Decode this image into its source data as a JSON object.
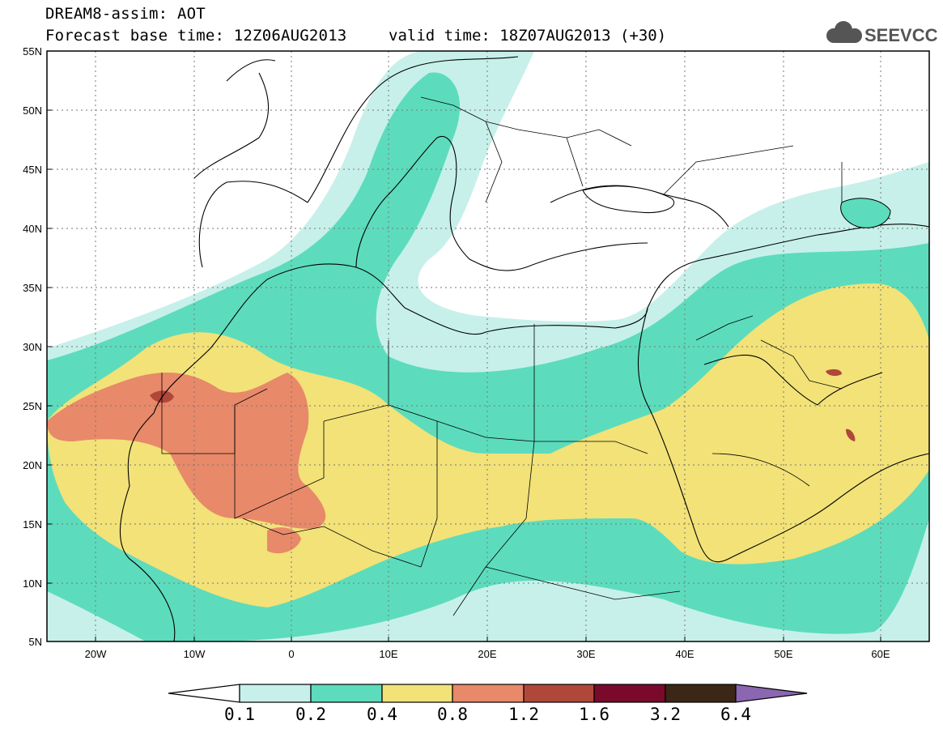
{
  "title": {
    "line1": "DREAM8-assim: AOT",
    "line2": "Forecast base time: 12Z06AUG2013",
    "valid": "valid time: 18Z07AUG2013 (+30)"
  },
  "logo": {
    "text": "SEEVCCC",
    "icon": "cloud-icon"
  },
  "map": {
    "lat_labels": [
      "55N",
      "50N",
      "45N",
      "40N",
      "35N",
      "30N",
      "25N",
      "20N",
      "15N",
      "10N",
      "5N"
    ],
    "lon_labels": [
      "20W",
      "10W",
      "0",
      "10E",
      "20E",
      "30E",
      "40E",
      "50E",
      "60E"
    ],
    "extent": {
      "lon_min": -25,
      "lon_max": 65,
      "lat_min": 5,
      "lat_max": 55
    },
    "grid": "dotted"
  },
  "colorbar": {
    "labels": [
      "0.1",
      "0.2",
      "0.4",
      "0.8",
      "1.2",
      "1.6",
      "3.2",
      "6.4"
    ],
    "colors": [
      "#ffffff",
      "#c7f0ea",
      "#5cdcbc",
      "#f2e278",
      "#e8896a",
      "#b0483a",
      "#7a0a2c",
      "#3c2616",
      "#8a67b0"
    ]
  }
}
